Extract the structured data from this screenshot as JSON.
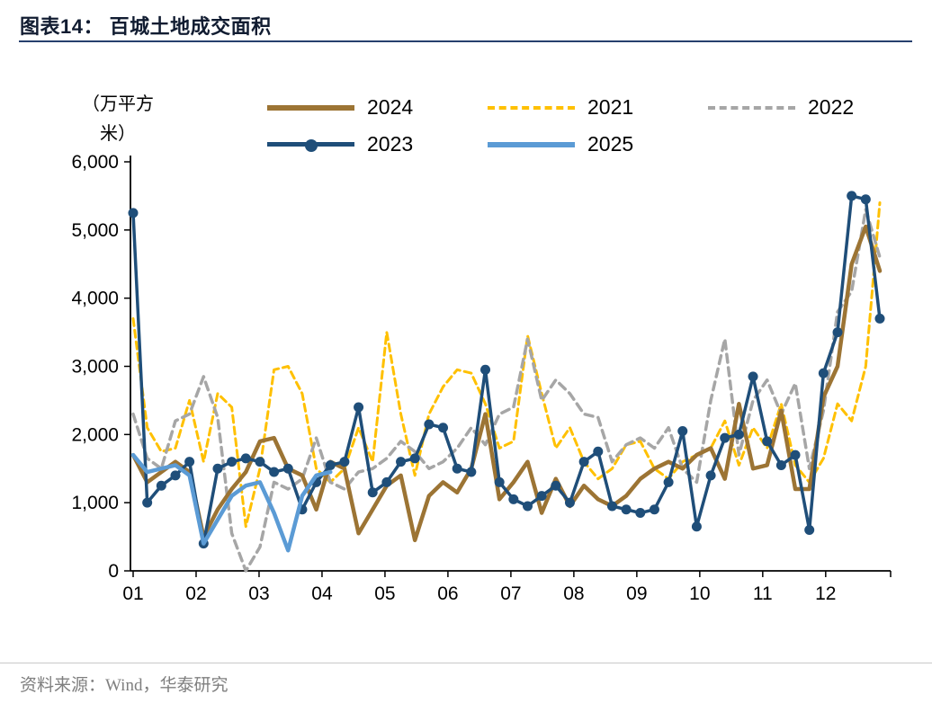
{
  "header": {
    "title": "图表14：  百城土地成交面积"
  },
  "footer": {
    "source": "资料来源：Wind，华泰研究"
  },
  "chart_data": {
    "type": "line",
    "title": "百城土地成交面积",
    "xlabel": "",
    "ylabel": "（万平方米）",
    "unit_label_lines": [
      "（万平方",
      "米）"
    ],
    "x_tick_labels": [
      "01",
      "02",
      "03",
      "04",
      "05",
      "06",
      "07",
      "08",
      "09",
      "10",
      "11",
      "12"
    ],
    "x_month_span": 11.86,
    "ylim": [
      0,
      6000
    ],
    "y_ticks": [
      0,
      1000,
      2000,
      3000,
      4000,
      5000,
      6000
    ],
    "y_tick_labels": [
      "0",
      "1,000",
      "2,000",
      "3,000",
      "4,000",
      "5,000",
      "6,000"
    ],
    "legend_rows": [
      [
        "2024",
        "2021",
        "2022"
      ],
      [
        "2023",
        "2025"
      ]
    ],
    "grid": false,
    "legend_position": "top",
    "series": [
      {
        "name": "2021",
        "color": "#FFC000",
        "dash": "8 5",
        "marker": false,
        "width": 3,
        "values": [
          3700,
          2100,
          1750,
          1800,
          2500,
          1600,
          2600,
          2400,
          650,
          1500,
          2950,
          3000,
          2600,
          1500,
          1300,
          1500,
          2100,
          1600,
          3500,
          2300,
          1400,
          2300,
          2700,
          2950,
          2900,
          2450,
          1800,
          1900,
          3450,
          2600,
          1800,
          2100,
          1600,
          1350,
          1500,
          1850,
          1900,
          1500,
          1350,
          1600,
          1700,
          1800,
          2200,
          1550,
          2100,
          1800,
          2450,
          1550,
          1300,
          1650,
          2450,
          2200,
          3000,
          5400
        ]
      },
      {
        "name": "2022",
        "color": "#A6A6A6",
        "dash": "9 6",
        "marker": false,
        "width": 3.5,
        "values": [
          2300,
          1650,
          1500,
          2200,
          2300,
          2850,
          2250,
          550,
          0,
          350,
          1300,
          1200,
          1350,
          1950,
          1300,
          1200,
          1450,
          1500,
          1650,
          1900,
          1750,
          1500,
          1600,
          1800,
          2100,
          1850,
          2300,
          2400,
          3400,
          2500,
          2800,
          2600,
          2300,
          2250,
          1600,
          1850,
          1950,
          1800,
          2100,
          1500,
          1300,
          2500,
          3400,
          1700,
          2500,
          2800,
          2300,
          2750,
          1500,
          2350,
          3800,
          4100,
          5300,
          4600
        ]
      },
      {
        "name": "2024",
        "color": "#9C7434",
        "dash": "none",
        "marker": false,
        "width": 4.5,
        "values": [
          1700,
          1300,
          1450,
          1600,
          1450,
          500,
          900,
          1200,
          1450,
          1900,
          1950,
          1500,
          1400,
          900,
          1600,
          1500,
          550,
          900,
          1250,
          1400,
          450,
          1100,
          1300,
          1150,
          1500,
          2300,
          1050,
          1300,
          1600,
          850,
          1350,
          950,
          1250,
          1050,
          950,
          1100,
          1350,
          1500,
          1600,
          1500,
          1700,
          1800,
          1350,
          2450,
          1500,
          1550,
          2350,
          1200,
          1200,
          2550,
          3000,
          4500,
          5050,
          4400
        ]
      },
      {
        "name": "2023",
        "color": "#1F4E79",
        "dash": "none",
        "marker": true,
        "width": 3.5,
        "values": [
          5250,
          1000,
          1250,
          1400,
          1600,
          400,
          1500,
          1600,
          1650,
          1600,
          1450,
          1500,
          900,
          1300,
          1550,
          1600,
          2400,
          1150,
          1300,
          1600,
          1650,
          2150,
          2100,
          1500,
          1450,
          2950,
          1300,
          1050,
          950,
          1100,
          1250,
          1000,
          1600,
          1750,
          950,
          900,
          850,
          900,
          1300,
          2050,
          650,
          1400,
          1950,
          2000,
          2850,
          1900,
          1550,
          1700,
          600,
          2900,
          3500,
          5500,
          5450,
          3700
        ]
      },
      {
        "name": "2025",
        "color": "#5B9BD5",
        "dash": "none",
        "marker": false,
        "width": 4.5,
        "values": [
          1700,
          1450,
          1500,
          1550,
          1400,
          400,
          750,
          1100,
          1250,
          1300,
          850,
          300,
          1100,
          1400,
          1450
        ]
      }
    ]
  }
}
